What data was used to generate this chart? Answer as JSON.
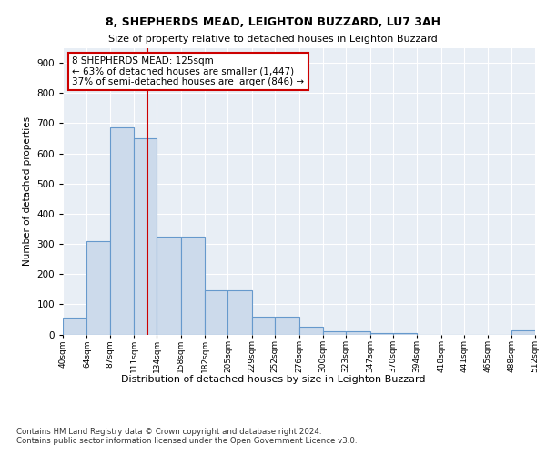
{
  "title1": "8, SHEPHERDS MEAD, LEIGHTON BUZZARD, LU7 3AH",
  "title2": "Size of property relative to detached houses in Leighton Buzzard",
  "xlabel": "Distribution of detached houses by size in Leighton Buzzard",
  "ylabel": "Number of detached properties",
  "footnote": "Contains HM Land Registry data © Crown copyright and database right 2024.\nContains public sector information licensed under the Open Government Licence v3.0.",
  "bin_edges": [
    40,
    64,
    87,
    111,
    134,
    158,
    182,
    205,
    229,
    252,
    276,
    300,
    323,
    347,
    370,
    394,
    418,
    441,
    465,
    488,
    512
  ],
  "bar_heights": [
    55,
    310,
    685,
    650,
    325,
    325,
    145,
    145,
    60,
    60,
    25,
    10,
    10,
    5,
    5,
    0,
    0,
    0,
    0,
    15
  ],
  "bar_color": "#ccdaeb",
  "bar_edge_color": "#6699cc",
  "vline_x": 125,
  "vline_color": "#cc0000",
  "annotation_text": "8 SHEPHERDS MEAD: 125sqm\n← 63% of detached houses are smaller (1,447)\n37% of semi-detached houses are larger (846) →",
  "annotation_box_color": "white",
  "annotation_box_edge": "#cc0000",
  "ylim": [
    0,
    950
  ],
  "yticks": [
    0,
    100,
    200,
    300,
    400,
    500,
    600,
    700,
    800,
    900
  ],
  "plot_bg_color": "#e8eef5",
  "grid_color": "white"
}
